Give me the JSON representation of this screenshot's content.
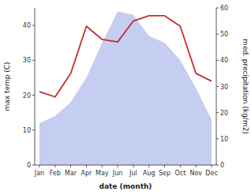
{
  "chart_data": {
    "type": "area",
    "x_label": "date (month)",
    "y_label": "max temp (C)",
    "y2_label": "med. precipitation (kg/m2)",
    "categories": [
      "Jan",
      "Feb",
      "Mar",
      "Apr",
      "May",
      "Jun",
      "Jul",
      "Aug",
      "Sep",
      "Oct",
      "Nov",
      "Dec"
    ],
    "series": [
      {
        "type": "area",
        "color": "#c5cef0",
        "values": [
          12,
          14,
          18,
          25,
          35,
          44,
          43,
          37,
          35,
          30,
          22,
          13
        ]
      },
      {
        "type": "line",
        "axis": "y2",
        "color": "#c03030",
        "values": [
          28,
          26,
          35,
          53,
          48,
          47,
          55,
          57,
          57,
          53,
          35,
          32
        ]
      }
    ],
    "ylim": [
      0,
      45
    ],
    "yticks": [
      0,
      10,
      20,
      30,
      40
    ],
    "y2lim": [
      0,
      60
    ],
    "y2ticks": [
      0,
      10,
      20,
      30,
      40,
      50,
      60
    ],
    "grid": false
  }
}
